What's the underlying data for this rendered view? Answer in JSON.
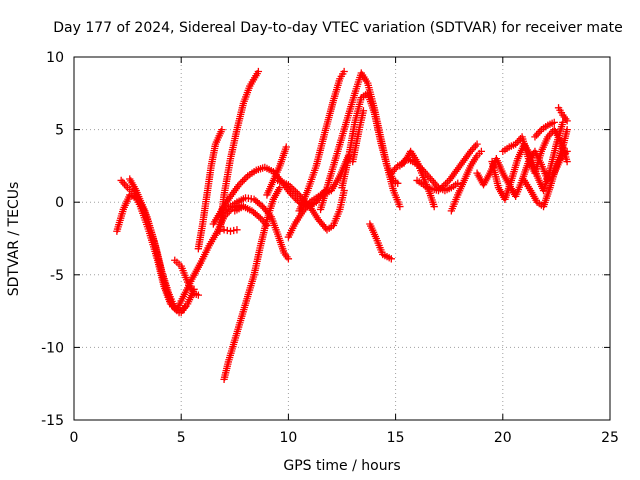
{
  "chart_data": {
    "type": "scatter",
    "title": "Day 177 of 2024, Sidereal Day-to-day VTEC variation (SDTVAR) for receiver mate",
    "xlabel": "GPS time / hours",
    "ylabel": "SDTVAR / TECUs",
    "xlim": [
      0,
      25
    ],
    "ylim": [
      -15,
      10
    ],
    "xticks": [
      0,
      5,
      10,
      15,
      20,
      25
    ],
    "yticks": [
      -15,
      -10,
      -5,
      0,
      5,
      10
    ],
    "xtick_labels": [
      "0",
      "5",
      "10",
      "15",
      "20",
      "25"
    ],
    "ytick_labels": [
      "-15",
      "-10",
      "-5",
      "0",
      "5",
      "10"
    ],
    "grid": true,
    "marker": "plus",
    "color": "#ff0000",
    "series": [
      {
        "values": [
          [
            2.0,
            -2.0
          ],
          [
            2.3,
            -0.5
          ],
          [
            2.6,
            0.5
          ],
          [
            3.0,
            0.2
          ],
          [
            3.4,
            -1.0
          ],
          [
            3.8,
            -3.0
          ],
          [
            4.1,
            -4.8
          ],
          [
            4.4,
            -6.2
          ],
          [
            4.7,
            -7.3
          ],
          [
            5.0,
            -7.6
          ],
          [
            5.3,
            -7.0
          ],
          [
            5.6,
            -6.0
          ]
        ]
      },
      {
        "values": [
          [
            2.2,
            1.5
          ],
          [
            2.5,
            1.0
          ],
          [
            2.8,
            0.6
          ],
          [
            3.1,
            -0.3
          ],
          [
            3.5,
            -2.0
          ],
          [
            3.9,
            -4.0
          ],
          [
            4.2,
            -5.8
          ],
          [
            4.5,
            -7.0
          ],
          [
            4.8,
            -7.4
          ],
          [
            5.1,
            -6.5
          ],
          [
            5.5,
            -5.3
          ],
          [
            5.9,
            -4.2
          ],
          [
            6.3,
            -3.0
          ],
          [
            6.7,
            -2.0
          ],
          [
            7.0,
            -1.0
          ],
          [
            7.4,
            -0.4
          ],
          [
            7.8,
            -0.2
          ]
        ]
      },
      {
        "values": [
          [
            2.6,
            1.6
          ],
          [
            2.9,
            0.8
          ],
          [
            3.3,
            -0.6
          ],
          [
            3.7,
            -2.5
          ],
          [
            4.0,
            -4.3
          ],
          [
            4.3,
            -6.0
          ],
          [
            4.6,
            -7.2
          ],
          [
            4.9,
            -7.6
          ],
          [
            5.2,
            -7.2
          ]
        ]
      },
      {
        "values": [
          [
            4.7,
            -4.0
          ],
          [
            5.0,
            -4.4
          ],
          [
            5.3,
            -5.5
          ],
          [
            5.6,
            -6.3
          ],
          [
            5.8,
            -6.4
          ]
        ]
      },
      {
        "values": [
          [
            5.8,
            -3.2
          ],
          [
            6.0,
            -1.5
          ],
          [
            6.2,
            0.5
          ],
          [
            6.4,
            2.5
          ],
          [
            6.6,
            4.0
          ],
          [
            6.9,
            5.0
          ]
        ]
      },
      {
        "values": [
          [
            7.0,
            -12.2
          ],
          [
            7.2,
            -11.0
          ],
          [
            7.5,
            -9.5
          ],
          [
            7.8,
            -8.0
          ],
          [
            8.1,
            -6.5
          ],
          [
            8.4,
            -5.0
          ],
          [
            8.7,
            -3.0
          ],
          [
            9.0,
            -1.2
          ],
          [
            9.3,
            0.2
          ],
          [
            9.6,
            1.0
          ]
        ]
      },
      {
        "values": [
          [
            6.8,
            -2.0
          ],
          [
            7.0,
            0.5
          ],
          [
            7.3,
            3.0
          ],
          [
            7.6,
            5.0
          ],
          [
            7.9,
            6.8
          ],
          [
            8.2,
            8.0
          ],
          [
            8.6,
            9.0
          ]
        ]
      },
      {
        "values": [
          [
            7.0,
            -1.9
          ],
          [
            7.3,
            -2.0
          ],
          [
            7.6,
            -1.9
          ]
        ]
      },
      {
        "values": [
          [
            6.5,
            -1.5
          ],
          [
            6.9,
            -0.5
          ],
          [
            7.3,
            0.4
          ],
          [
            7.7,
            1.2
          ],
          [
            8.1,
            1.8
          ],
          [
            8.5,
            2.2
          ],
          [
            8.9,
            2.4
          ],
          [
            9.3,
            2.1
          ],
          [
            9.7,
            1.4
          ],
          [
            10.1,
            0.6
          ],
          [
            10.5,
            0.0
          ],
          [
            10.9,
            -0.3
          ],
          [
            11.3,
            0.0
          ],
          [
            11.7,
            0.8
          ]
        ]
      },
      {
        "values": [
          [
            6.8,
            -0.8
          ],
          [
            7.2,
            -0.4
          ],
          [
            7.6,
            0.0
          ],
          [
            8.0,
            0.3
          ],
          [
            8.4,
            0.2
          ],
          [
            8.8,
            -0.3
          ],
          [
            9.2,
            -1.0
          ],
          [
            9.5,
            -2.2
          ],
          [
            9.8,
            -3.5
          ],
          [
            10.0,
            -3.9
          ]
        ]
      },
      {
        "values": [
          [
            7.5,
            -0.6
          ],
          [
            7.9,
            -0.3
          ],
          [
            8.3,
            -0.6
          ],
          [
            8.7,
            -1.1
          ],
          [
            9.0,
            -1.6
          ]
        ]
      },
      {
        "values": [
          [
            9.0,
            0.5
          ],
          [
            9.3,
            1.5
          ],
          [
            9.6,
            2.5
          ],
          [
            9.9,
            3.8
          ]
        ]
      },
      {
        "values": [
          [
            10.0,
            -2.4
          ],
          [
            10.3,
            -1.5
          ],
          [
            10.6,
            -0.8
          ],
          [
            11.0,
            0.0
          ],
          [
            11.5,
            0.5
          ],
          [
            12.0,
            0.8
          ],
          [
            12.4,
            1.8
          ],
          [
            12.8,
            3.2
          ]
        ]
      },
      {
        "values": [
          [
            9.5,
            1.5
          ],
          [
            10.0,
            1.2
          ],
          [
            10.5,
            0.5
          ],
          [
            11.0,
            -0.3
          ],
          [
            11.4,
            -1.2
          ],
          [
            11.8,
            -1.9
          ],
          [
            12.1,
            -1.6
          ],
          [
            12.4,
            -0.5
          ],
          [
            12.6,
            0.8
          ]
        ]
      },
      {
        "values": [
          [
            10.5,
            -0.6
          ],
          [
            10.9,
            0.8
          ],
          [
            11.3,
            2.5
          ],
          [
            11.7,
            4.8
          ],
          [
            12.1,
            7.0
          ],
          [
            12.4,
            8.5
          ],
          [
            12.6,
            9.0
          ]
        ]
      },
      {
        "values": [
          [
            11.5,
            -0.5
          ],
          [
            11.9,
            1.5
          ],
          [
            12.3,
            3.5
          ],
          [
            12.7,
            5.5
          ],
          [
            13.1,
            7.5
          ],
          [
            13.4,
            8.9
          ],
          [
            13.7,
            8.2
          ],
          [
            14.0,
            6.5
          ],
          [
            14.3,
            4.5
          ],
          [
            14.6,
            2.5
          ],
          [
            14.9,
            0.8
          ],
          [
            15.2,
            -0.3
          ]
        ]
      },
      {
        "values": [
          [
            12.5,
            1.0
          ],
          [
            12.8,
            3.0
          ],
          [
            13.1,
            5.5
          ],
          [
            13.4,
            7.2
          ],
          [
            13.7,
            7.5
          ],
          [
            14.0,
            6.2
          ],
          [
            14.3,
            4.2
          ],
          [
            14.6,
            2.5
          ],
          [
            14.9,
            1.5
          ],
          [
            15.1,
            1.3
          ]
        ]
      },
      {
        "values": [
          [
            13.0,
            2.8
          ],
          [
            13.3,
            5.0
          ],
          [
            13.5,
            6.3
          ]
        ]
      },
      {
        "values": [
          [
            13.8,
            -1.5
          ],
          [
            14.1,
            -2.5
          ],
          [
            14.4,
            -3.6
          ],
          [
            14.8,
            -3.9
          ]
        ]
      },
      {
        "values": [
          [
            15.2,
            2.5
          ],
          [
            15.5,
            3.0
          ],
          [
            15.8,
            2.8
          ],
          [
            16.1,
            2.5
          ],
          [
            16.4,
            2.0
          ],
          [
            16.7,
            1.5
          ],
          [
            17.0,
            1.0
          ],
          [
            17.3,
            0.8
          ],
          [
            17.6,
            1.0
          ],
          [
            17.9,
            1.3
          ]
        ]
      },
      {
        "values": [
          [
            14.8,
            2.0
          ],
          [
            15.1,
            2.5
          ],
          [
            15.4,
            2.7
          ],
          [
            15.7,
            3.5
          ],
          [
            16.0,
            2.8
          ],
          [
            16.3,
            1.7
          ],
          [
            16.6,
            0.6
          ],
          [
            16.8,
            -0.3
          ]
        ]
      },
      {
        "values": [
          [
            16.0,
            1.5
          ],
          [
            16.5,
            1.0
          ],
          [
            17.0,
            0.8
          ],
          [
            17.5,
            1.5
          ],
          [
            18.0,
            2.5
          ],
          [
            18.5,
            3.5
          ],
          [
            18.8,
            4.0
          ]
        ]
      },
      {
        "values": [
          [
            17.6,
            -0.6
          ],
          [
            17.9,
            0.5
          ],
          [
            18.2,
            1.5
          ],
          [
            18.5,
            2.5
          ],
          [
            18.8,
            3.2
          ],
          [
            19.0,
            3.5
          ]
        ]
      },
      {
        "values": [
          [
            18.8,
            2.0
          ],
          [
            19.1,
            1.2
          ],
          [
            19.4,
            2.0
          ],
          [
            19.7,
            3.0
          ],
          [
            20.0,
            2.0
          ],
          [
            20.3,
            1.2
          ],
          [
            20.6,
            0.4
          ],
          [
            20.9,
            1.5
          ],
          [
            21.2,
            2.8
          ],
          [
            21.5,
            3.5
          ],
          [
            21.8,
            2.6
          ],
          [
            22.1,
            1.5
          ],
          [
            22.4,
            2.0
          ],
          [
            22.7,
            3.0
          ],
          [
            23.0,
            3.5
          ]
        ]
      },
      {
        "values": [
          [
            19.5,
            2.8
          ],
          [
            19.8,
            1.0
          ],
          [
            20.1,
            0.2
          ],
          [
            20.4,
            1.5
          ],
          [
            20.7,
            3.0
          ],
          [
            21.0,
            4.0
          ],
          [
            21.3,
            3.2
          ],
          [
            21.6,
            1.8
          ],
          [
            21.9,
            0.8
          ],
          [
            22.2,
            2.2
          ],
          [
            22.5,
            4.0
          ],
          [
            22.8,
            5.5
          ]
        ]
      },
      {
        "values": [
          [
            20.0,
            3.5
          ],
          [
            20.3,
            3.8
          ],
          [
            20.6,
            4.0
          ],
          [
            20.9,
            4.5
          ],
          [
            21.2,
            3.0
          ],
          [
            21.5,
            2.0
          ],
          [
            21.8,
            3.5
          ],
          [
            22.1,
            4.5
          ],
          [
            22.4,
            5.0
          ],
          [
            22.7,
            4.2
          ],
          [
            23.0,
            2.8
          ]
        ]
      },
      {
        "values": [
          [
            21.0,
            1.5
          ],
          [
            21.3,
            0.8
          ],
          [
            21.6,
            0.0
          ],
          [
            21.9,
            -0.3
          ],
          [
            22.2,
            1.0
          ],
          [
            22.5,
            2.5
          ],
          [
            22.8,
            3.8
          ],
          [
            23.0,
            5.0
          ]
        ]
      },
      {
        "values": [
          [
            22.6,
            6.5
          ],
          [
            22.8,
            6.0
          ],
          [
            23.0,
            5.6
          ]
        ]
      },
      {
        "values": [
          [
            21.5,
            4.5
          ],
          [
            21.8,
            5.0
          ],
          [
            22.1,
            5.3
          ],
          [
            22.4,
            5.5
          ]
        ]
      }
    ]
  }
}
